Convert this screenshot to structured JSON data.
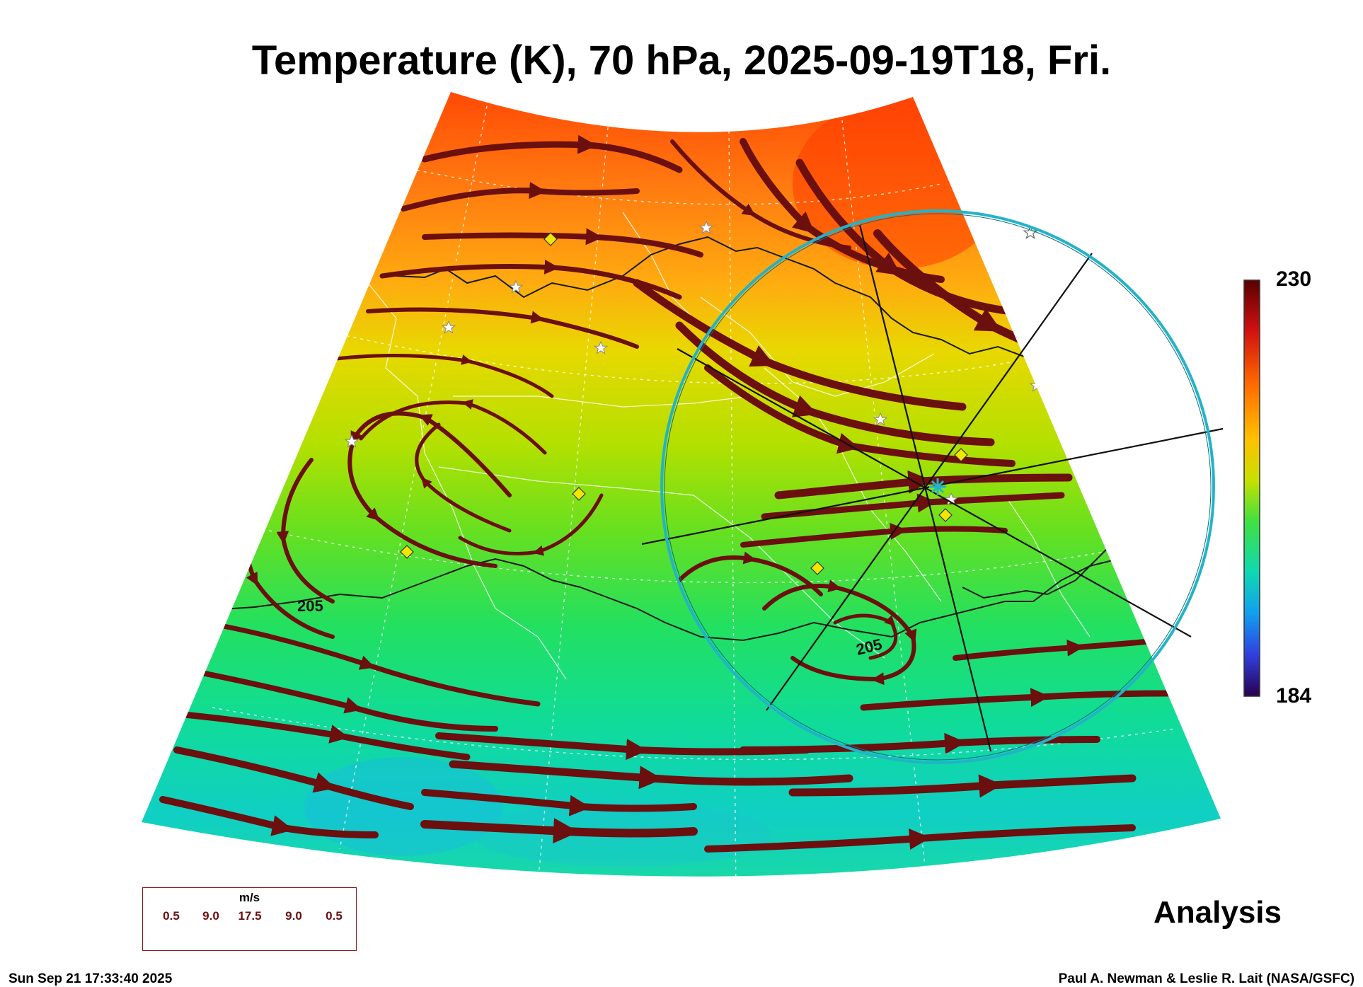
{
  "title": "Temperature (K), 70 hPa, 2025-09-19T18, Fri.",
  "colorbar": {
    "max_label": "230",
    "min_label": "184",
    "colormap": "rainbow (purple-blue-cyan-green-yellow-orange-red-darkred)"
  },
  "contour_labels": [
    "205",
    "205"
  ],
  "wind_legend": {
    "unit": "m/s",
    "values": [
      "0.5",
      "9.0",
      "17.5",
      "9.0",
      "0.5"
    ]
  },
  "analysis_label": "Analysis",
  "timestamp": "Sun Sep 21 17:33:40 2025",
  "credit": "Paul A. Newman & Leslie R. Lait (NASA/GSFC)",
  "colors": {
    "streamline": "#6b0f0f",
    "range_ring": "#22b3c8",
    "marker_fill": "#f2e600",
    "contour": "#1a1a1a"
  },
  "icons": {
    "station_marker": "diamond-icon",
    "site_marker": "star-icon",
    "center_marker": "asterisk-icon"
  }
}
